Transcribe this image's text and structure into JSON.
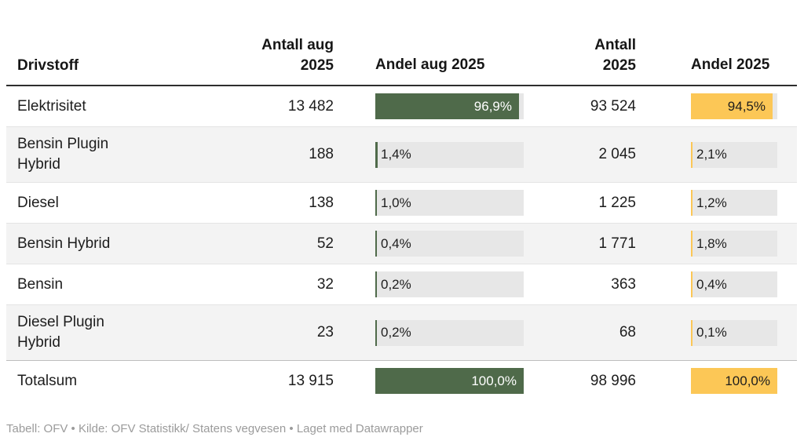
{
  "columns": {
    "drivstoff": "Drivstoff",
    "antall_aug": "Antall aug\n2025",
    "andel_aug": "Andel aug 2025",
    "antall_2025": "Antall\n2025",
    "andel_2025": "Andel\n2025"
  },
  "rows": [
    {
      "drivstoff": "Elektrisitet",
      "antall_aug": "13 482",
      "andel_aug": "96,9%",
      "andel_aug_pct": 96.9,
      "antall_2025": "93 524",
      "andel_2025": "94,5%",
      "andel_2025_pct": 94.5
    },
    {
      "drivstoff": "Bensin Plugin Hybrid",
      "antall_aug": "188",
      "andel_aug": "1,4%",
      "andel_aug_pct": 1.4,
      "antall_2025": "2 045",
      "andel_2025": "2,1%",
      "andel_2025_pct": 2.1
    },
    {
      "drivstoff": "Diesel",
      "antall_aug": "138",
      "andel_aug": "1,0%",
      "andel_aug_pct": 1.0,
      "antall_2025": "1 225",
      "andel_2025": "1,2%",
      "andel_2025_pct": 1.2
    },
    {
      "drivstoff": "Bensin Hybrid",
      "antall_aug": "52",
      "andel_aug": "0,4%",
      "andel_aug_pct": 0.4,
      "antall_2025": "1 771",
      "andel_2025": "1,8%",
      "andel_2025_pct": 1.8
    },
    {
      "drivstoff": "Bensin",
      "antall_aug": "32",
      "andel_aug": "0,2%",
      "andel_aug_pct": 0.2,
      "antall_2025": "363",
      "andel_2025": "0,4%",
      "andel_2025_pct": 0.4
    },
    {
      "drivstoff": "Diesel Plugin Hybrid",
      "antall_aug": "23",
      "andel_aug": "0,2%",
      "andel_aug_pct": 0.2,
      "antall_2025": "68",
      "andel_2025": "0,1%",
      "andel_2025_pct": 0.1
    },
    {
      "drivstoff": "Totalsum",
      "antall_aug": "13 915",
      "andel_aug": "100,0%",
      "andel_aug_pct": 100.0,
      "antall_2025": "98 996",
      "andel_2025": "100,0%",
      "andel_2025_pct": 100.0
    }
  ],
  "footer": "Tabell: OFV • Kilde: OFV Statistikk/ Statens vegvesen • Laget med Datawrapper",
  "colors": {
    "green": "#4f6a4a",
    "yellow": "#fcc756",
    "track": "#e7e7e7",
    "alt_row": "#f3f3f3"
  },
  "chart_data": {
    "type": "table",
    "title": "",
    "categories": [
      "Elektrisitet",
      "Bensin Plugin Hybrid",
      "Diesel",
      "Bensin Hybrid",
      "Bensin",
      "Diesel Plugin Hybrid",
      "Totalsum"
    ],
    "series": [
      {
        "name": "Antall aug 2025",
        "values": [
          13482,
          188,
          138,
          52,
          32,
          23,
          13915
        ]
      },
      {
        "name": "Andel aug 2025 (%)",
        "values": [
          96.9,
          1.4,
          1.0,
          0.4,
          0.2,
          0.2,
          100.0
        ]
      },
      {
        "name": "Antall 2025",
        "values": [
          93524,
          2045,
          1225,
          1771,
          363,
          68,
          98996
        ]
      },
      {
        "name": "Andel 2025 (%)",
        "values": [
          94.5,
          2.1,
          1.2,
          1.8,
          0.4,
          0.1,
          100.0
        ]
      }
    ],
    "layout_hints": {
      "bar_columns": [
        "Andel aug 2025 (%)",
        "Andel 2025 (%)"
      ],
      "bar_colors": [
        "#4f6a4a",
        "#fcc756"
      ],
      "value_range": [
        0,
        100
      ]
    }
  }
}
